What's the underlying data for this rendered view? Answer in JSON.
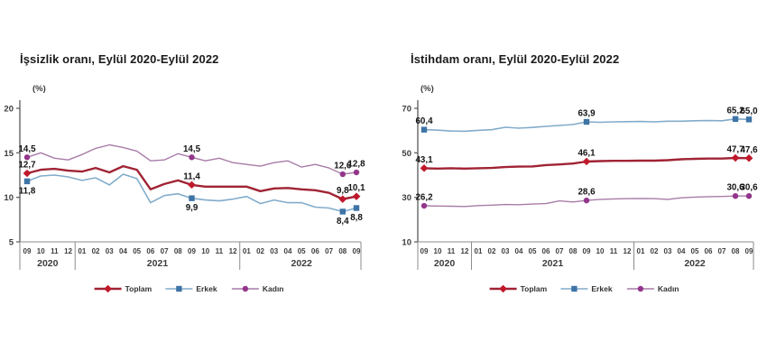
{
  "page": {
    "background": "#ffffff"
  },
  "chart_data": [
    {
      "type": "line",
      "title": "İşsizlik oranı, Eylül 2020-Eylül 2022",
      "ylabel": "(%)",
      "ylim": [
        5,
        20
      ],
      "y_ticks": [
        20,
        15,
        10,
        5
      ],
      "grid": false,
      "legend_position": "bottom",
      "x_months": [
        "09",
        "10",
        "11",
        "12",
        "01",
        "02",
        "03",
        "04",
        "05",
        "06",
        "07",
        "08",
        "09",
        "10",
        "11",
        "12",
        "01",
        "02",
        "03",
        "04",
        "05",
        "06",
        "07",
        "08",
        "09"
      ],
      "year_groups": [
        {
          "label": "2020",
          "months": 4
        },
        {
          "label": "2021",
          "months": 12
        },
        {
          "label": "2022",
          "months": 9
        }
      ],
      "series": [
        {
          "name": "Toplam",
          "marker": "diamond",
          "color": "#A02334",
          "marker_color": "#C0182B",
          "line_width": 2.4,
          "values": [
            12.7,
            13.1,
            13.2,
            13.0,
            12.9,
            13.3,
            12.8,
            13.5,
            13.1,
            10.9,
            11.5,
            11.9,
            11.4,
            11.2,
            11.2,
            11.2,
            11.2,
            10.7,
            11.0,
            11.05,
            10.9,
            10.8,
            10.5,
            9.8,
            10.1
          ],
          "point_labels": [
            {
              "index": 0,
              "label": "12,7",
              "position": "above"
            },
            {
              "index": 12,
              "label": "11,4",
              "position": "above"
            },
            {
              "index": 23,
              "label": "9,8",
              "position": "above"
            },
            {
              "index": 24,
              "label": "10,1",
              "position": "above"
            }
          ]
        },
        {
          "name": "Erkek",
          "marker": "square",
          "color": "#82ACCB",
          "marker_color": "#3E74A6",
          "line_width": 1.6,
          "values": [
            11.8,
            12.4,
            12.5,
            12.3,
            11.9,
            12.2,
            11.4,
            12.6,
            12.1,
            9.4,
            10.2,
            10.4,
            9.9,
            9.7,
            9.6,
            9.8,
            10.1,
            9.3,
            9.7,
            9.4,
            9.4,
            8.9,
            8.8,
            8.4,
            8.8
          ],
          "point_labels": [
            {
              "index": 0,
              "label": "11,8",
              "position": "below"
            },
            {
              "index": 12,
              "label": "9,9",
              "position": "below"
            },
            {
              "index": 23,
              "label": "8,4",
              "position": "below"
            },
            {
              "index": 24,
              "label": "8,8",
              "position": "below"
            }
          ]
        },
        {
          "name": "Kadın",
          "marker": "circle",
          "color": "#A87CA8",
          "marker_color": "#93368B",
          "line_width": 1.4,
          "values": [
            14.5,
            15.0,
            14.4,
            14.2,
            14.8,
            15.5,
            15.9,
            15.6,
            15.2,
            14.1,
            14.2,
            14.9,
            14.5,
            14.1,
            14.4,
            13.9,
            13.7,
            13.5,
            13.9,
            14.1,
            13.4,
            13.7,
            13.3,
            12.6,
            12.8
          ],
          "point_labels": [
            {
              "index": 0,
              "label": "14,5",
              "position": "above"
            },
            {
              "index": 12,
              "label": "14,5",
              "position": "above"
            },
            {
              "index": 23,
              "label": "12,6",
              "position": "above"
            },
            {
              "index": 24,
              "label": "12,8",
              "position": "above"
            }
          ]
        }
      ]
    },
    {
      "type": "line",
      "title": "İstihdam oranı, Eylül 2020-Eylül 2022",
      "ylabel": "(%)",
      "ylim": [
        10,
        70
      ],
      "y_ticks": [
        70,
        50,
        30,
        10
      ],
      "grid": false,
      "legend_position": "bottom",
      "x_months": [
        "09",
        "10",
        "11",
        "12",
        "01",
        "02",
        "03",
        "04",
        "05",
        "06",
        "07",
        "08",
        "09",
        "10",
        "11",
        "12",
        "01",
        "02",
        "03",
        "04",
        "05",
        "06",
        "07",
        "08",
        "09"
      ],
      "year_groups": [
        {
          "label": "2020",
          "months": 4
        },
        {
          "label": "2021",
          "months": 12
        },
        {
          "label": "2022",
          "months": 9
        }
      ],
      "series": [
        {
          "name": "Toplam",
          "marker": "diamond",
          "color": "#A02334",
          "marker_color": "#C0182B",
          "line_width": 2.4,
          "values": [
            43.1,
            42.9,
            43.1,
            42.9,
            43.1,
            43.2,
            43.6,
            43.8,
            43.9,
            44.5,
            44.8,
            45.2,
            46.1,
            46.3,
            46.4,
            46.4,
            46.5,
            46.5,
            46.7,
            47.1,
            47.3,
            47.4,
            47.4,
            47.7,
            47.6
          ],
          "point_labels": [
            {
              "index": 0,
              "label": "43,1",
              "position": "above"
            },
            {
              "index": 12,
              "label": "46,1",
              "position": "above"
            },
            {
              "index": 23,
              "label": "47,7",
              "position": "above"
            },
            {
              "index": 24,
              "label": "47,6",
              "position": "above"
            }
          ]
        },
        {
          "name": "Erkek",
          "marker": "square",
          "color": "#82ACCB",
          "marker_color": "#3E74A6",
          "line_width": 1.6,
          "values": [
            60.4,
            60.2,
            59.8,
            59.7,
            60.1,
            60.4,
            61.5,
            61.1,
            61.4,
            61.9,
            62.3,
            62.7,
            63.9,
            63.7,
            63.9,
            64.0,
            64.1,
            63.9,
            64.2,
            64.2,
            64.4,
            64.5,
            64.4,
            65.2,
            65.0
          ],
          "point_labels": [
            {
              "index": 0,
              "label": "60,4",
              "position": "above"
            },
            {
              "index": 12,
              "label": "63,9",
              "position": "above"
            },
            {
              "index": 23,
              "label": "65,2",
              "position": "above"
            },
            {
              "index": 24,
              "label": "65,0",
              "position": "above"
            }
          ]
        },
        {
          "name": "Kadın",
          "marker": "circle",
          "color": "#A87CA8",
          "marker_color": "#93368B",
          "line_width": 1.4,
          "values": [
            26.2,
            26.1,
            26.0,
            25.9,
            26.3,
            26.5,
            26.8,
            26.7,
            27.0,
            27.2,
            28.4,
            27.9,
            28.6,
            29.1,
            29.3,
            29.4,
            29.5,
            29.4,
            29.1,
            29.8,
            30.1,
            30.3,
            30.4,
            30.6,
            30.6
          ],
          "point_labels": [
            {
              "index": 0,
              "label": "26,2",
              "position": "above"
            },
            {
              "index": 12,
              "label": "28,6",
              "position": "above"
            },
            {
              "index": 23,
              "label": "30,6",
              "position": "above"
            },
            {
              "index": 24,
              "label": "30,6",
              "position": "above"
            }
          ]
        }
      ]
    }
  ]
}
